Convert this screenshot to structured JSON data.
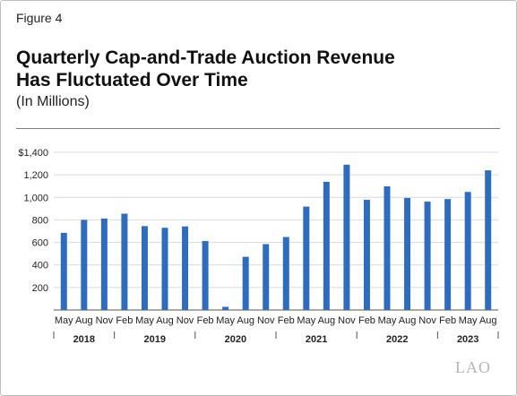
{
  "figure_label": "Figure 4",
  "title_line1": "Quarterly Cap-and-Trade Auction Revenue",
  "title_line2": "Has Fluctuated Over Time",
  "subtitle": "(In Millions)",
  "logo": "LAO",
  "colors": {
    "bar": "#2e6cc0",
    "grid": "#d9d9d9",
    "axis": "#555555"
  },
  "chart_data": {
    "type": "bar",
    "categories": [
      "May",
      "Aug",
      "Nov",
      "Feb",
      "May",
      "Aug",
      "Nov",
      "Feb",
      "May",
      "Aug",
      "Nov",
      "Feb",
      "May",
      "Aug",
      "Nov",
      "Feb",
      "May",
      "Aug",
      "Nov",
      "Feb",
      "May",
      "Aug"
    ],
    "values": [
      685,
      800,
      812,
      855,
      745,
      730,
      742,
      612,
      28,
      472,
      585,
      648,
      918,
      1138,
      1290,
      978,
      1098,
      995,
      962,
      985,
      1048,
      1240
    ],
    "year_groups": [
      {
        "label": "2018",
        "start": 0,
        "end": 2
      },
      {
        "label": "2019",
        "start": 3,
        "end": 6
      },
      {
        "label": "2020",
        "start": 7,
        "end": 10
      },
      {
        "label": "2021",
        "start": 11,
        "end": 14
      },
      {
        "label": "2022",
        "start": 15,
        "end": 18
      },
      {
        "label": "2023",
        "start": 19,
        "end": 21
      }
    ],
    "y_ticks": [
      "$1,400",
      "1,200",
      "1,000",
      "800",
      "600",
      "400",
      "200"
    ],
    "y_tick_values": [
      1400,
      1200,
      1000,
      800,
      600,
      400,
      200
    ],
    "ylim": [
      0,
      1400
    ],
    "grid": true,
    "legend": "none"
  }
}
